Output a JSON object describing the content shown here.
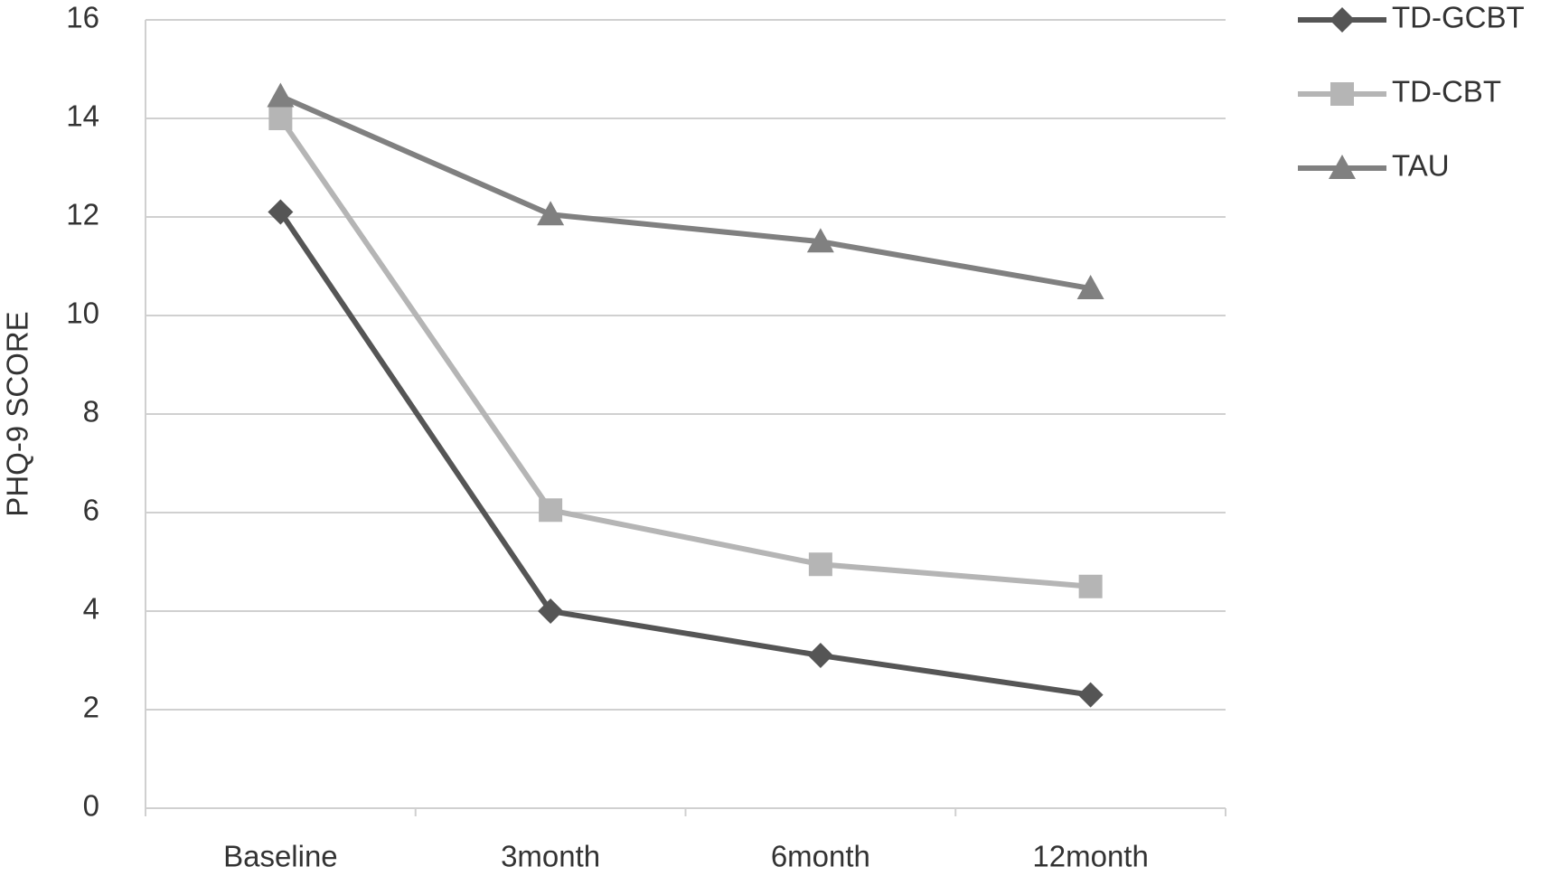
{
  "chart_data": {
    "type": "line",
    "y_label": "PHQ-9 SCORE",
    "categories": [
      "Baseline",
      "3month",
      "6month",
      "12month"
    ],
    "series": [
      {
        "name": "TD-GCBT",
        "color": "#555555",
        "marker": "diamond",
        "values": [
          12.1,
          4.0,
          3.1,
          2.3
        ]
      },
      {
        "name": "TD-CBT",
        "color": "#b5b5b5",
        "marker": "square",
        "values": [
          14.0,
          6.05,
          4.95,
          4.5
        ]
      },
      {
        "name": "TAU",
        "color": "#808080",
        "marker": "triangle",
        "values": [
          14.45,
          12.05,
          11.5,
          10.55
        ]
      }
    ],
    "ylim": [
      0,
      16
    ],
    "yticks": [
      0,
      2,
      4,
      6,
      8,
      10,
      12,
      14,
      16
    ],
    "grid": true,
    "legend": "top-right"
  }
}
